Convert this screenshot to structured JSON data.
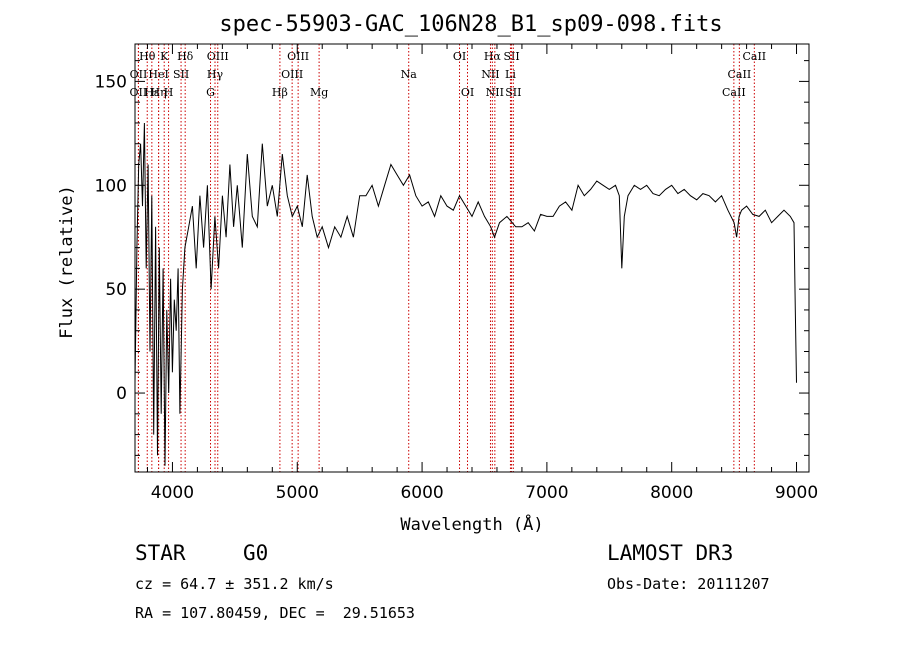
{
  "chart_data": {
    "type": "line",
    "title": "spec-55903-GAC_106N28_B1_sp09-098.fits",
    "xlabel": "Wavelength (Å)",
    "ylabel": "Flux (relative)",
    "xlim": [
      3700,
      9100
    ],
    "ylim": [
      -38,
      168
    ],
    "xticks": [
      4000,
      5000,
      6000,
      7000,
      8000,
      9000
    ],
    "yticks": [
      0,
      50,
      100,
      150
    ],
    "xtick_labels": [
      "4000",
      "5000",
      "6000",
      "7000",
      "8000",
      "9000"
    ],
    "ytick_labels": [
      "0",
      "50",
      "100",
      "150"
    ],
    "series": [
      {
        "name": "flux",
        "x": [
          3700,
          3715,
          3730,
          3745,
          3760,
          3775,
          3790,
          3805,
          3820,
          3835,
          3850,
          3865,
          3880,
          3895,
          3910,
          3925,
          3940,
          3955,
          3970,
          3985,
          4000,
          4015,
          4030,
          4045,
          4060,
          4080,
          4100,
          4130,
          4160,
          4190,
          4220,
          4250,
          4280,
          4310,
          4340,
          4370,
          4400,
          4430,
          4460,
          4490,
          4520,
          4560,
          4600,
          4640,
          4680,
          4720,
          4760,
          4800,
          4840,
          4880,
          4920,
          4960,
          5000,
          5040,
          5080,
          5120,
          5160,
          5200,
          5250,
          5300,
          5350,
          5400,
          5450,
          5500,
          5550,
          5600,
          5650,
          5700,
          5750,
          5800,
          5850,
          5900,
          5950,
          6000,
          6050,
          6100,
          6150,
          6200,
          6250,
          6300,
          6350,
          6400,
          6450,
          6500,
          6550,
          6580,
          6620,
          6680,
          6750,
          6800,
          6850,
          6900,
          6950,
          7000,
          7050,
          7100,
          7150,
          7200,
          7250,
          7300,
          7350,
          7400,
          7450,
          7500,
          7550,
          7580,
          7600,
          7620,
          7650,
          7700,
          7750,
          7800,
          7850,
          7900,
          7950,
          8000,
          8050,
          8100,
          8150,
          8200,
          8250,
          8300,
          8350,
          8400,
          8450,
          8500,
          8520,
          8540,
          8560,
          8600,
          8650,
          8700,
          8750,
          8800,
          8850,
          8900,
          8950,
          8980,
          8990,
          9000
        ],
        "values": [
          5,
          70,
          110,
          120,
          90,
          130,
          60,
          110,
          20,
          95,
          -20,
          80,
          -30,
          70,
          -10,
          60,
          -35,
          40,
          0,
          55,
          10,
          45,
          30,
          60,
          -10,
          50,
          70,
          80,
          90,
          60,
          95,
          70,
          100,
          50,
          85,
          60,
          95,
          75,
          110,
          80,
          100,
          70,
          115,
          85,
          80,
          120,
          90,
          100,
          85,
          115,
          95,
          85,
          90,
          80,
          105,
          85,
          75,
          80,
          70,
          80,
          75,
          85,
          75,
          95,
          95,
          100,
          90,
          100,
          110,
          105,
          100,
          105,
          95,
          90,
          92,
          85,
          95,
          90,
          88,
          95,
          90,
          85,
          92,
          85,
          80,
          75,
          82,
          85,
          80,
          80,
          82,
          78,
          86,
          85,
          85,
          90,
          92,
          88,
          100,
          95,
          98,
          102,
          100,
          98,
          100,
          95,
          60,
          85,
          95,
          100,
          98,
          100,
          96,
          95,
          98,
          100,
          96,
          98,
          95,
          93,
          96,
          95,
          92,
          95,
          88,
          82,
          75,
          85,
          88,
          90,
          86,
          85,
          88,
          82,
          85,
          88,
          85,
          82,
          40,
          5
        ]
      }
    ],
    "line_markers": [
      {
        "label": "Hθ",
        "x": 3798,
        "row": 0
      },
      {
        "label": "OII",
        "x": 3728,
        "row": 1
      },
      {
        "label": "OII",
        "x": 3727,
        "row": 2
      },
      {
        "label": "K",
        "x": 3934,
        "row": 0
      },
      {
        "label": "HeI",
        "x": 3889,
        "row": 1
      },
      {
        "label": "Hε",
        "x": 3835,
        "row": 2
      },
      {
        "label": "Hη",
        "x": 3889,
        "row": 2
      },
      {
        "label": "H",
        "x": 3969,
        "row": 2
      },
      {
        "label": "SII",
        "x": 4069,
        "row": 1
      },
      {
        "label": "Hδ",
        "x": 4102,
        "row": 0
      },
      {
        "label": "OIII",
        "x": 4363,
        "row": 0
      },
      {
        "label": "Hγ",
        "x": 4341,
        "row": 1
      },
      {
        "label": "G",
        "x": 4305,
        "row": 2
      },
      {
        "label": "OIII",
        "x": 5007,
        "row": 0
      },
      {
        "label": "OIII",
        "x": 4959,
        "row": 1
      },
      {
        "label": "Hβ",
        "x": 4861,
        "row": 2
      },
      {
        "label": "Mg",
        "x": 5175,
        "row": 2
      },
      {
        "label": "Na",
        "x": 5893,
        "row": 1
      },
      {
        "label": "OI",
        "x": 6300,
        "row": 0
      },
      {
        "label": "OI",
        "x": 6364,
        "row": 2
      },
      {
        "label": "Hα",
        "x": 6563,
        "row": 0
      },
      {
        "label": "SII",
        "x": 6717,
        "row": 0
      },
      {
        "label": "NII",
        "x": 6548,
        "row": 1
      },
      {
        "label": "Li",
        "x": 6708,
        "row": 1
      },
      {
        "label": "NII",
        "x": 6583,
        "row": 2
      },
      {
        "label": "SII",
        "x": 6731,
        "row": 2
      },
      {
        "label": "CaII",
        "x": 8662,
        "row": 0
      },
      {
        "label": "CaII",
        "x": 8542,
        "row": 1
      },
      {
        "label": "CaII",
        "x": 8498,
        "row": 2
      }
    ]
  },
  "info": {
    "object_type": "STAR",
    "subclass": "G0",
    "survey": "LAMOST DR3",
    "redshift_line": "cz = 64.7 ± 351.2 km/s",
    "obs_date_line": "Obs-Date: 20111207",
    "coords_line": "RA = 107.80459, DEC =  29.51653"
  },
  "colors": {
    "spectrum": "#000000",
    "marker": "#cc0000",
    "frame": "#000000"
  }
}
